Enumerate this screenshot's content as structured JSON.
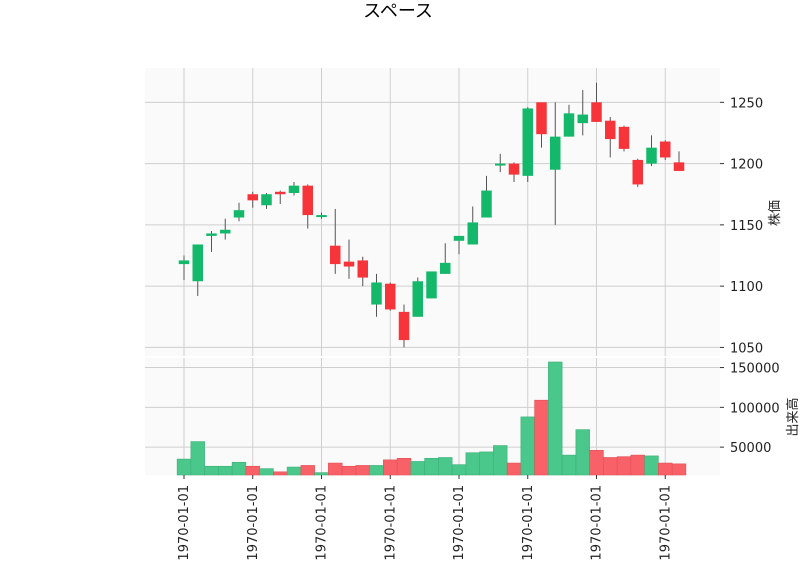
{
  "chart_data": {
    "type": "candlestick",
    "title": "スペース",
    "price_panel": {
      "ylabel": "株価",
      "ylim": [
        1043,
        1278
      ],
      "yticks": [
        1050,
        1100,
        1150,
        1200,
        1250
      ],
      "grid": true,
      "up_color": "#14b86a",
      "down_color": "#f8343b"
    },
    "volume_panel": {
      "ylabel": "出来高",
      "ylim": [
        15000,
        162000
      ],
      "yticks": [
        50000,
        100000,
        150000
      ],
      "grid": true,
      "up_color": "#4ac78a",
      "down_color": "#f96168"
    },
    "x_tick_labels": [
      "1970-01-01",
      "1970-01-01",
      "1970-01-01",
      "1970-01-01",
      "1970-01-01",
      "1970-01-01",
      "1970-01-01",
      "1970-01-01"
    ],
    "x_tick_positions": [
      0,
      5,
      10,
      15,
      20,
      25,
      30,
      35
    ],
    "candles": [
      {
        "open": 1118,
        "high": 1125,
        "low": 1105,
        "close": 1121
      },
      {
        "open": 1104,
        "high": 1134,
        "low": 1092,
        "close": 1134
      },
      {
        "open": 1141,
        "high": 1145,
        "low": 1128,
        "close": 1143
      },
      {
        "open": 1143,
        "high": 1155,
        "low": 1138,
        "close": 1146
      },
      {
        "open": 1156,
        "high": 1168,
        "low": 1153,
        "close": 1162
      },
      {
        "open": 1175,
        "high": 1177,
        "low": 1164,
        "close": 1170
      },
      {
        "open": 1166,
        "high": 1176,
        "low": 1163,
        "close": 1175
      },
      {
        "open": 1177,
        "high": 1178,
        "low": 1167,
        "close": 1175
      },
      {
        "open": 1176,
        "high": 1185,
        "low": 1174,
        "close": 1182
      },
      {
        "open": 1182,
        "high": 1183,
        "low": 1147,
        "close": 1158
      },
      {
        "open": 1157,
        "high": 1160,
        "low": 1155,
        "close": 1158
      },
      {
        "open": 1133,
        "high": 1163,
        "low": 1110,
        "close": 1118
      },
      {
        "open": 1120,
        "high": 1138,
        "low": 1106,
        "close": 1116
      },
      {
        "open": 1121,
        "high": 1124,
        "low": 1100,
        "close": 1107
      },
      {
        "open": 1085,
        "high": 1110,
        "low": 1075,
        "close": 1103
      },
      {
        "open": 1102,
        "high": 1103,
        "low": 1080,
        "close": 1081
      },
      {
        "open": 1079,
        "high": 1085,
        "low": 1050,
        "close": 1056
      },
      {
        "open": 1075,
        "high": 1107,
        "low": 1075,
        "close": 1104
      },
      {
        "open": 1090,
        "high": 1112,
        "low": 1090,
        "close": 1112
      },
      {
        "open": 1110,
        "high": 1135,
        "low": 1110,
        "close": 1119
      },
      {
        "open": 1137,
        "high": 1141,
        "low": 1126,
        "close": 1141
      },
      {
        "open": 1134,
        "high": 1165,
        "low": 1134,
        "close": 1152
      },
      {
        "open": 1156,
        "high": 1190,
        "low": 1156,
        "close": 1178
      },
      {
        "open": 1199,
        "high": 1208,
        "low": 1193,
        "close": 1200
      },
      {
        "open": 1200,
        "high": 1201,
        "low": 1185,
        "close": 1191
      },
      {
        "open": 1190,
        "high": 1246,
        "low": 1185,
        "close": 1245
      },
      {
        "open": 1250,
        "high": 1250,
        "low": 1213,
        "close": 1224
      },
      {
        "open": 1195,
        "high": 1250,
        "low": 1150,
        "close": 1222
      },
      {
        "open": 1222,
        "high": 1248,
        "low": 1222,
        "close": 1241
      },
      {
        "open": 1233,
        "high": 1260,
        "low": 1223,
        "close": 1240
      },
      {
        "open": 1250,
        "high": 1266,
        "low": 1234,
        "close": 1234
      },
      {
        "open": 1235,
        "high": 1238,
        "low": 1205,
        "close": 1220
      },
      {
        "open": 1230,
        "high": 1231,
        "low": 1210,
        "close": 1212
      },
      {
        "open": 1203,
        "high": 1204,
        "low": 1181,
        "close": 1183
      },
      {
        "open": 1200,
        "high": 1223,
        "low": 1198,
        "close": 1213
      },
      {
        "open": 1218,
        "high": 1219,
        "low": 1203,
        "close": 1205
      },
      {
        "open": 1201,
        "high": 1210,
        "low": 1194,
        "close": 1194
      }
    ],
    "volumes": [
      35000,
      57000,
      26000,
      26000,
      31000,
      26000,
      23000,
      19000,
      25000,
      27000,
      18000,
      30000,
      26000,
      27000,
      27000,
      34000,
      36000,
      32000,
      36000,
      37000,
      28000,
      43000,
      44000,
      52000,
      30000,
      88000,
      109000,
      157000,
      40000,
      72000,
      46000,
      37000,
      38000,
      40000,
      39000,
      30000,
      29000
    ]
  }
}
